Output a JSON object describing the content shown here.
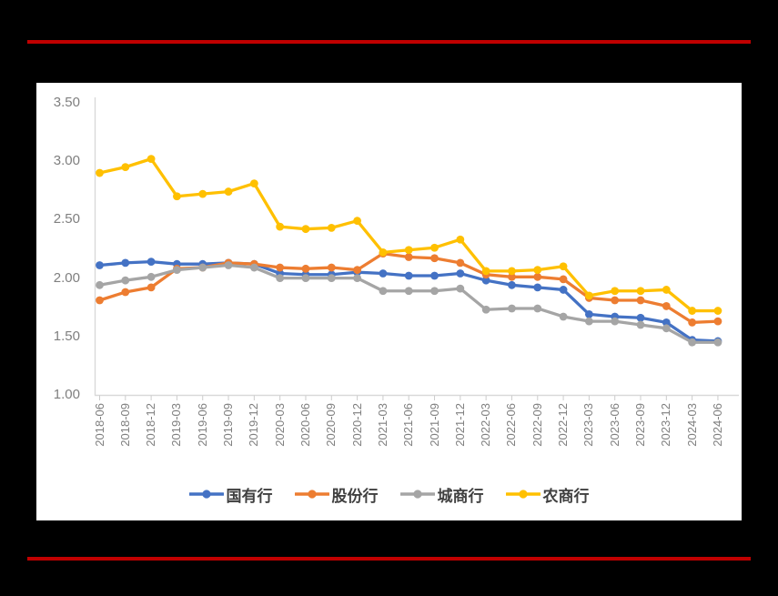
{
  "slide": {
    "background_color": "#000000",
    "accent_rule_color": "#C00000"
  },
  "chart_panel": {
    "background_color": "#ffffff",
    "axis_line_color": "#d9d9d9",
    "tick_color": "#cccccc",
    "axis_label_color": "#7f7f7f",
    "legend_text_color": "#404040"
  },
  "chart_data": {
    "type": "line",
    "title": "",
    "xlabel": "",
    "ylabel": "",
    "ylim": [
      1.0,
      3.5
    ],
    "ytick_labels": [
      "3.50",
      "3.00",
      "2.50",
      "2.00",
      "1.50",
      "1.00"
    ],
    "ytick_values": [
      3.5,
      3.0,
      2.5,
      2.0,
      1.5,
      1.0
    ],
    "grid": false,
    "legend_position": "bottom",
    "marker": "circle",
    "categories": [
      "2018-06",
      "2018-09",
      "2018-12",
      "2019-03",
      "2019-06",
      "2019-09",
      "2019-12",
      "2020-03",
      "2020-06",
      "2020-09",
      "2020-12",
      "2021-03",
      "2021-06",
      "2021-09",
      "2021-12",
      "2022-03",
      "2022-06",
      "2022-09",
      "2022-12",
      "2023-03",
      "2023-06",
      "2023-09",
      "2023-12",
      "2024-03",
      "2024-06"
    ],
    "series": [
      {
        "name": "国有行",
        "color": "#4472C4",
        "values": [
          2.11,
          2.13,
          2.14,
          2.12,
          2.12,
          2.13,
          2.12,
          2.04,
          2.03,
          2.03,
          2.05,
          2.04,
          2.02,
          2.02,
          2.04,
          1.98,
          1.94,
          1.92,
          1.9,
          1.69,
          1.67,
          1.66,
          1.62,
          1.47,
          1.46
        ]
      },
      {
        "name": "股份行",
        "color": "#ED7D31",
        "values": [
          1.81,
          1.88,
          1.92,
          2.08,
          2.09,
          2.13,
          2.12,
          2.09,
          2.08,
          2.09,
          2.07,
          2.21,
          2.18,
          2.17,
          2.13,
          2.03,
          2.01,
          2.01,
          1.99,
          1.83,
          1.81,
          1.81,
          1.76,
          1.62,
          1.63
        ]
      },
      {
        "name": "城商行",
        "color": "#A5A5A5",
        "values": [
          1.94,
          1.98,
          2.01,
          2.07,
          2.09,
          2.11,
          2.09,
          2.0,
          2.0,
          2.0,
          2.0,
          1.89,
          1.89,
          1.89,
          1.91,
          1.73,
          1.74,
          1.74,
          1.67,
          1.63,
          1.63,
          1.6,
          1.57,
          1.45,
          1.45
        ]
      },
      {
        "name": "农商行",
        "color": "#FFC000",
        "values": [
          2.9,
          2.95,
          3.02,
          2.7,
          2.72,
          2.74,
          2.81,
          2.44,
          2.42,
          2.43,
          2.49,
          2.22,
          2.24,
          2.26,
          2.33,
          2.06,
          2.06,
          2.07,
          2.1,
          1.85,
          1.89,
          1.89,
          1.9,
          1.72,
          1.72
        ]
      }
    ]
  }
}
